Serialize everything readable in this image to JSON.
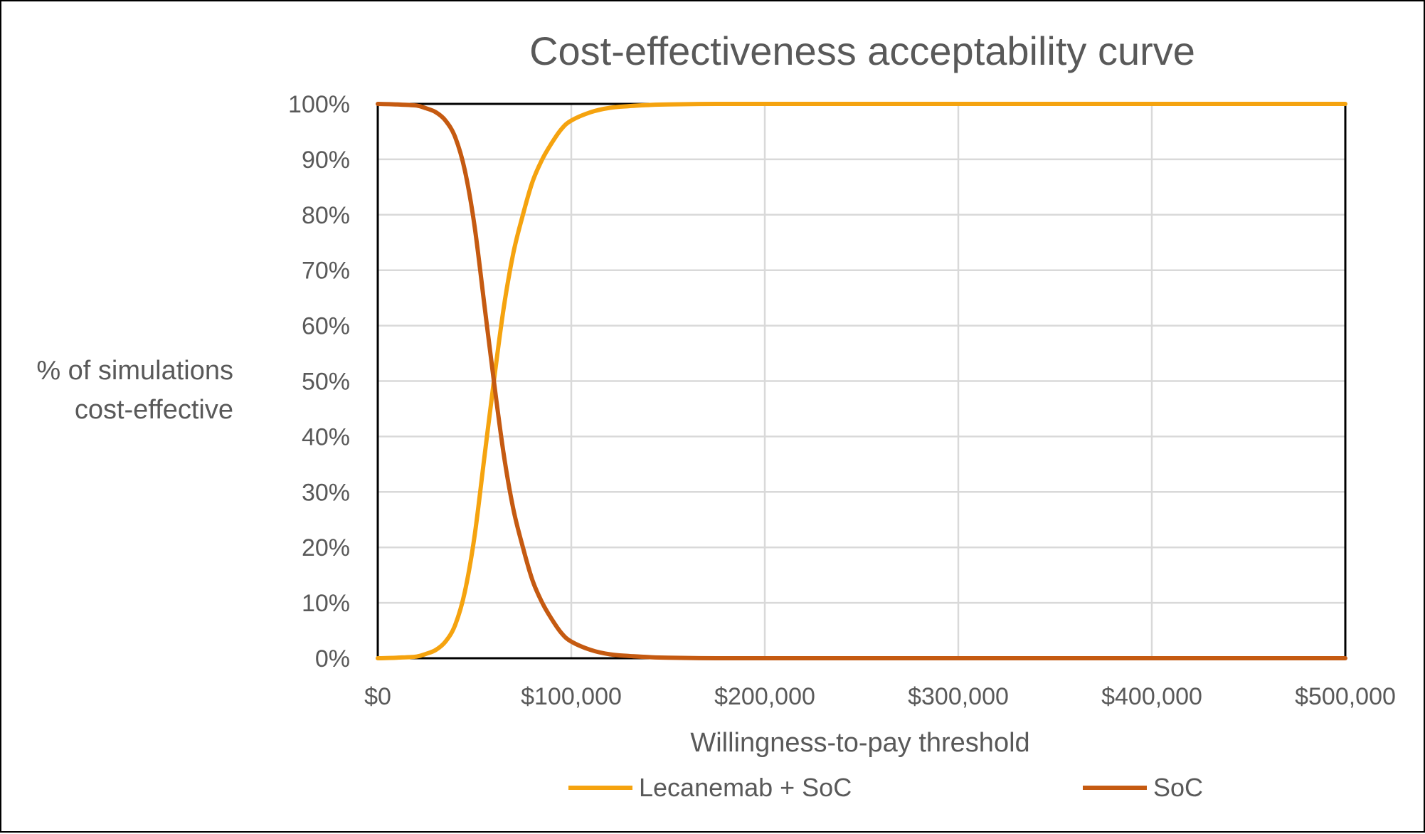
{
  "chart_data": {
    "type": "line",
    "title": "Cost-effectiveness acceptability curve",
    "xlabel": "Willingness-to-pay threshold",
    "ylabel_lines": [
      "% of simulations",
      "cost-effective"
    ],
    "xlim": [
      0,
      500000
    ],
    "ylim": [
      0,
      100
    ],
    "x_ticks": [
      0,
      100000,
      200000,
      300000,
      400000,
      500000
    ],
    "x_tick_labels": [
      "$0",
      "$100,000",
      "$200,000",
      "$300,000",
      "$400,000",
      "$500,000"
    ],
    "y_ticks": [
      0,
      10,
      20,
      30,
      40,
      50,
      60,
      70,
      80,
      90,
      100
    ],
    "y_tick_labels": [
      "0%",
      "10%",
      "20%",
      "30%",
      "40%",
      "50%",
      "60%",
      "70%",
      "80%",
      "90%",
      "100%"
    ],
    "grid": true,
    "legend_position": "bottom",
    "x": [
      0,
      10000,
      20000,
      25000,
      30000,
      35000,
      40000,
      45000,
      50000,
      55000,
      60000,
      65000,
      70000,
      75000,
      80000,
      85000,
      90000,
      95000,
      100000,
      110000,
      120000,
      130000,
      140000,
      150000,
      175000,
      200000,
      250000,
      300000,
      400000,
      500000
    ],
    "series": [
      {
        "name": "Lecanemab + SoC",
        "color": "#f5a30f",
        "values": [
          0,
          0.1,
          0.3,
          0.8,
          1.5,
          3.0,
          6.0,
          12.0,
          22.0,
          36.0,
          50.0,
          63.0,
          73.0,
          80.0,
          86.0,
          90.0,
          93.0,
          95.5,
          97.0,
          98.5,
          99.3,
          99.6,
          99.8,
          99.9,
          100,
          100,
          100,
          100,
          100,
          100
        ]
      },
      {
        "name": "SoC",
        "color": "#c55a11",
        "values": [
          100,
          99.9,
          99.7,
          99.2,
          98.5,
          97.0,
          94.0,
          88.0,
          78.0,
          64.0,
          50.0,
          37.0,
          27.0,
          20.0,
          14.0,
          10.0,
          7.0,
          4.5,
          3.0,
          1.5,
          0.7,
          0.4,
          0.2,
          0.1,
          0,
          0,
          0,
          0,
          0,
          0
        ]
      }
    ]
  }
}
